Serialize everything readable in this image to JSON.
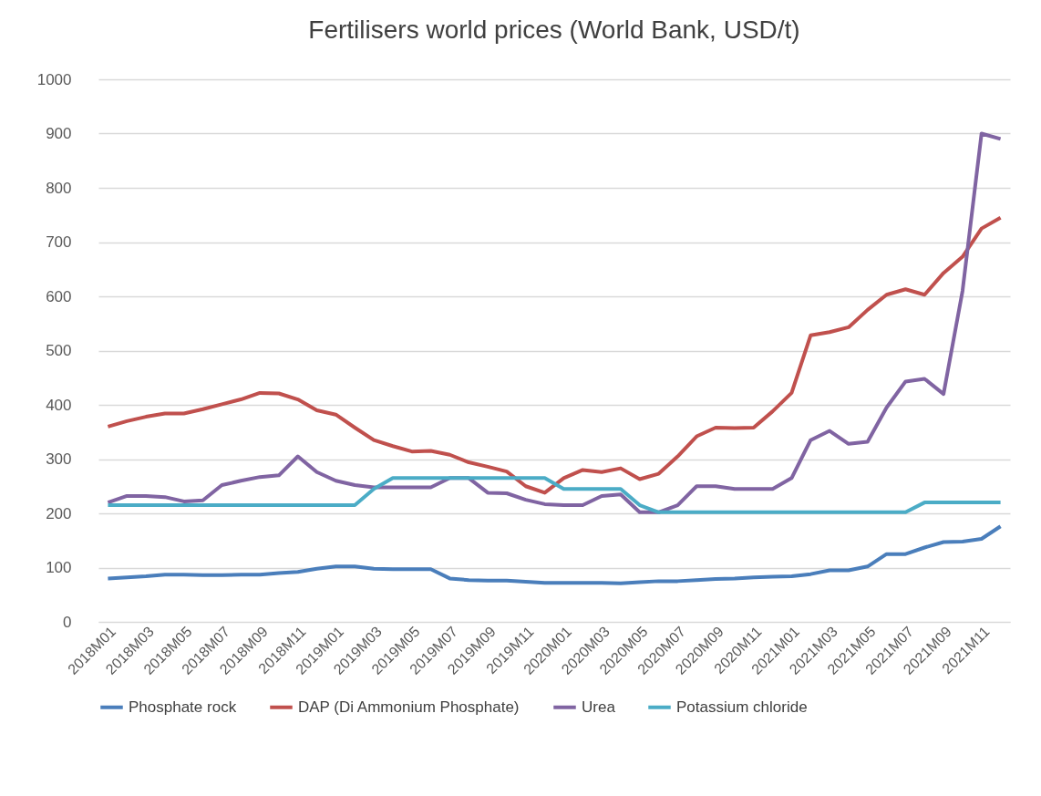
{
  "chart_data": {
    "type": "line",
    "title": "Fertilisers world prices (World Bank, USD/t)",
    "categories": [
      "2018M01",
      null,
      "2018M03",
      null,
      "2018M05",
      null,
      "2018M07",
      null,
      "2018M09",
      null,
      "2018M11",
      null,
      "2019M01",
      null,
      "2019M03",
      null,
      "2019M05",
      null,
      "2019M07",
      null,
      "2019M09",
      null,
      "2019M11",
      null,
      "2020M01",
      null,
      "2020M03",
      null,
      "2020M05",
      null,
      "2020M07",
      null,
      "2020M09",
      null,
      "2020M11",
      null,
      "2021M01",
      null,
      "2021M03",
      null,
      "2021M05",
      null,
      "2021M07",
      null,
      "2021M09",
      null,
      "2021M11",
      null
    ],
    "series": [
      {
        "name": "Phosphate rock",
        "color": "#4a7ebb",
        "values": [
          80,
          82,
          84,
          87,
          87,
          86,
          86,
          87,
          87,
          90,
          92,
          98,
          102,
          102,
          98,
          97,
          97,
          97,
          80,
          77,
          76,
          76,
          74,
          72,
          72,
          72,
          72,
          71,
          73,
          75,
          75,
          77,
          79,
          80,
          82,
          83,
          84,
          88,
          95,
          95,
          102,
          125,
          125,
          137,
          147,
          148,
          153,
          176
        ]
      },
      {
        "name": "DAP (Di Ammonium Phosphate)",
        "color": "#c0504d",
        "values": [
          360,
          370,
          378,
          384,
          384,
          392,
          401,
          410,
          422,
          421,
          410,
          390,
          382,
          358,
          335,
          324,
          314,
          315,
          308,
          294,
          286,
          277,
          250,
          238,
          265,
          280,
          276,
          283,
          263,
          273,
          305,
          342,
          358,
          357,
          358,
          388,
          422,
          528,
          534,
          543,
          575,
          603,
          613,
          603,
          643,
          673,
          725,
          745
        ]
      },
      {
        "name": "Urea",
        "color": "#8064a2",
        "values": [
          220,
          232,
          232,
          230,
          222,
          224,
          252,
          260,
          267,
          270,
          305,
          276,
          260,
          252,
          248,
          248,
          248,
          248,
          265,
          265,
          238,
          237,
          225,
          217,
          215,
          215,
          232,
          235,
          202,
          202,
          215,
          250,
          250,
          245,
          245,
          245,
          265,
          335,
          352,
          328,
          332,
          395,
          443,
          448,
          420,
          610,
          900,
          890
        ]
      },
      {
        "name": "Potassium chloride",
        "color": "#4bacc6",
        "values": [
          215,
          215,
          215,
          215,
          215,
          215,
          215,
          215,
          215,
          215,
          215,
          215,
          215,
          215,
          245,
          265,
          265,
          265,
          265,
          265,
          265,
          265,
          265,
          265,
          245,
          245,
          245,
          245,
          215,
          202,
          202,
          202,
          202,
          202,
          202,
          202,
          202,
          202,
          202,
          202,
          202,
          202,
          202,
          220,
          220,
          220,
          220,
          220
        ]
      }
    ],
    "ylim": [
      0,
      1000
    ],
    "yticks": [
      0,
      100,
      200,
      300,
      400,
      500,
      600,
      700,
      800,
      900,
      1000
    ],
    "grid": "y",
    "legend": "bottom",
    "marker": "none",
    "line_style": "solid"
  }
}
